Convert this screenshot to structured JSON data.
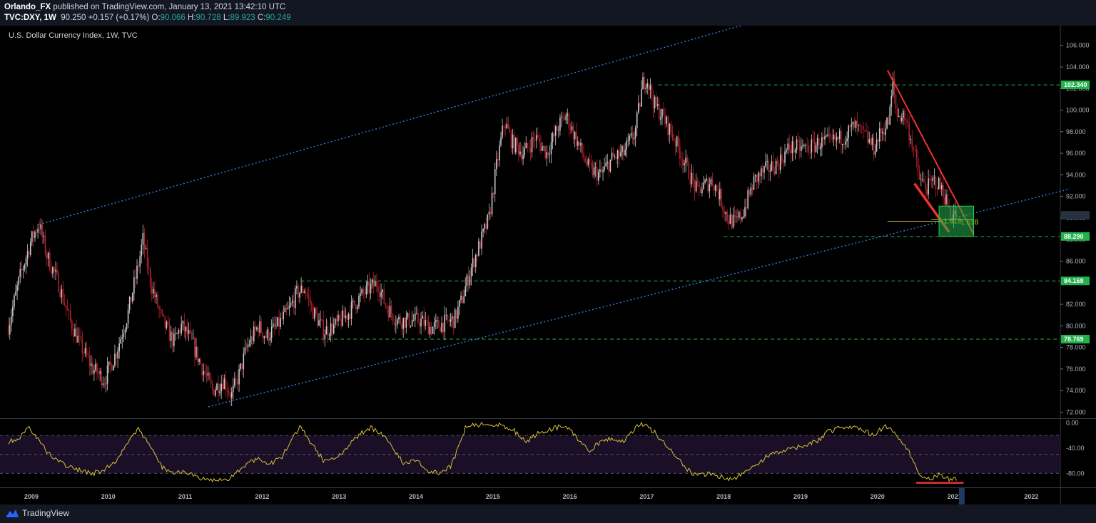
{
  "header": {
    "publisher": "Orlando_FX",
    "published_text": "published on TradingView.com, January 13, 2021 13:42:10 UTC",
    "symbol": "TVC:DXY, 1W",
    "last": "90.250",
    "change": "+0.157 (+0.17%)",
    "o_label": "O:",
    "o": "90.066",
    "h_label": "H:",
    "h": "90.728",
    "l_label": "L:",
    "l": "89.923",
    "c_label": "C:",
    "c": "90.249"
  },
  "footer": {
    "brand": "TradingView"
  },
  "chart_data": [
    {
      "type": "candlestick",
      "title": "U.S. Dollar Currency Index, 1W, TVC",
      "ylim": [
        71.5,
        107.5
      ],
      "y_ticks": [
        "106.000",
        "104.000",
        "102.000",
        "100.000",
        "98.000",
        "96.000",
        "94.000",
        "92.000",
        "90.000",
        "88.000",
        "86.000",
        "84.000",
        "82.000",
        "80.000",
        "78.000",
        "76.000",
        "74.000",
        "72.000"
      ],
      "x_ticks": [
        "2009",
        "2010",
        "2011",
        "2012",
        "2013",
        "2014",
        "2015",
        "2016",
        "2017",
        "2018",
        "2019",
        "2020",
        "2021",
        "2022"
      ],
      "price_tags": [
        {
          "value": 102.34,
          "label": "102.340",
          "color": "#22b14c"
        },
        {
          "value": 88.29,
          "label": "88.290",
          "color": "#22b14c"
        },
        {
          "value": 84.168,
          "label": "84.168",
          "color": "#22b14c"
        },
        {
          "value": 78.769,
          "label": "78.769",
          "color": "#22b14c"
        }
      ],
      "fib_labels": [
        "1.618",
        "1.618"
      ],
      "close_path": [
        [
          "2008.70",
          80.0
        ],
        [
          "2008.85",
          84.5
        ],
        [
          "2009.00",
          88.0
        ],
        [
          "2009.10",
          89.5
        ],
        [
          "2009.20",
          86.5
        ],
        [
          "2009.35",
          84.0
        ],
        [
          "2009.50",
          80.5
        ],
        [
          "2009.65",
          78.0
        ],
        [
          "2009.80",
          76.0
        ],
        [
          "2009.95",
          75.0
        ],
        [
          "2010.10",
          77.5
        ],
        [
          "2010.25",
          81.0
        ],
        [
          "2010.40",
          86.0
        ],
        [
          "2010.45",
          88.0
        ],
        [
          "2010.55",
          84.0
        ],
        [
          "2010.70",
          80.5
        ],
        [
          "2010.85",
          78.5
        ],
        [
          "2010.95",
          80.0
        ],
        [
          "2011.05",
          79.0
        ],
        [
          "2011.20",
          76.5
        ],
        [
          "2011.35",
          74.0
        ],
        [
          "2011.50",
          75.0
        ],
        [
          "2011.60",
          73.5
        ],
        [
          "2011.70",
          75.5
        ],
        [
          "2011.80",
          78.0
        ],
        [
          "2011.95",
          80.0
        ],
        [
          "2012.05",
          79.0
        ],
        [
          "2012.20",
          80.0
        ],
        [
          "2012.35",
          81.5
        ],
        [
          "2012.45",
          83.0
        ],
        [
          "2012.55",
          83.5
        ],
        [
          "2012.65",
          81.5
        ],
        [
          "2012.80",
          79.5
        ],
        [
          "2012.95",
          80.0
        ],
        [
          "2013.10",
          81.0
        ],
        [
          "2013.25",
          82.5
        ],
        [
          "2013.40",
          83.5
        ],
        [
          "2013.50",
          84.0
        ],
        [
          "2013.60",
          82.0
        ],
        [
          "2013.75",
          80.5
        ],
        [
          "2013.90",
          80.5
        ],
        [
          "2014.05",
          80.5
        ],
        [
          "2014.20",
          79.8
        ],
        [
          "2014.35",
          80.2
        ],
        [
          "2014.50",
          80.6
        ],
        [
          "2014.60",
          82.5
        ],
        [
          "2014.70",
          85.0
        ],
        [
          "2014.85",
          88.0
        ],
        [
          "2014.95",
          90.0
        ],
        [
          "2015.05",
          95.0
        ],
        [
          "2015.15",
          99.0
        ],
        [
          "2015.25",
          97.0
        ],
        [
          "2015.40",
          96.0
        ],
        [
          "2015.55",
          97.5
        ],
        [
          "2015.70",
          96.0
        ],
        [
          "2015.85",
          98.5
        ],
        [
          "2015.95",
          99.5
        ],
        [
          "2016.10",
          97.0
        ],
        [
          "2016.25",
          94.5
        ],
        [
          "2016.40",
          94.0
        ],
        [
          "2016.55",
          95.5
        ],
        [
          "2016.70",
          96.0
        ],
        [
          "2016.85",
          98.0
        ],
        [
          "2016.95",
          102.5
        ],
        [
          "2017.00",
          103.0
        ],
        [
          "2017.10",
          100.5
        ],
        [
          "2017.20",
          99.5
        ],
        [
          "2017.35",
          97.5
        ],
        [
          "2017.50",
          95.0
        ],
        [
          "2017.65",
          92.5
        ],
        [
          "2017.75",
          93.0
        ],
        [
          "2017.85",
          93.5
        ],
        [
          "2017.95",
          92.0
        ],
        [
          "2018.05",
          90.0
        ],
        [
          "2018.15",
          89.5
        ],
        [
          "2018.25",
          90.5
        ],
        [
          "2018.40",
          93.5
        ],
        [
          "2018.55",
          94.5
        ],
        [
          "2018.70",
          95.0
        ],
        [
          "2018.85",
          96.5
        ],
        [
          "2018.95",
          96.5
        ],
        [
          "2019.10",
          96.5
        ],
        [
          "2019.25",
          97.0
        ],
        [
          "2019.40",
          97.0
        ],
        [
          "2019.55",
          97.5
        ],
        [
          "2019.70",
          98.5
        ],
        [
          "2019.85",
          97.5
        ],
        [
          "2019.95",
          96.5
        ],
        [
          "2020.05",
          98.0
        ],
        [
          "2020.15",
          99.0
        ],
        [
          "2020.20",
          102.5
        ],
        [
          "2020.25",
          99.5
        ],
        [
          "2020.35",
          99.5
        ],
        [
          "2020.45",
          97.0
        ],
        [
          "2020.55",
          93.5
        ],
        [
          "2020.65",
          92.8
        ],
        [
          "2020.75",
          93.5
        ],
        [
          "2020.85",
          92.5
        ],
        [
          "2020.95",
          90.5
        ],
        [
          "2021.03",
          90.2
        ]
      ]
    },
    {
      "type": "line",
      "title": "",
      "ylim": [
        -100,
        5
      ],
      "y_ticks": [
        "0.00",
        "-40.00",
        "-80.00"
      ],
      "band": [
        -20,
        -80
      ],
      "series_path": [
        [
          "2008.70",
          -30
        ],
        [
          "2008.85",
          -25
        ],
        [
          "2008.95",
          -5
        ],
        [
          "2009.05",
          -20
        ],
        [
          "2009.20",
          -45
        ],
        [
          "2009.40",
          -65
        ],
        [
          "2009.60",
          -75
        ],
        [
          "2009.80",
          -80
        ],
        [
          "2009.95",
          -75
        ],
        [
          "2010.10",
          -60
        ],
        [
          "2010.25",
          -30
        ],
        [
          "2010.40",
          -10
        ],
        [
          "2010.55",
          -40
        ],
        [
          "2010.70",
          -70
        ],
        [
          "2010.85",
          -80
        ],
        [
          "2011.00",
          -75
        ],
        [
          "2011.15",
          -88
        ],
        [
          "2011.35",
          -92
        ],
        [
          "2011.55",
          -90
        ],
        [
          "2011.75",
          -70
        ],
        [
          "2011.95",
          -55
        ],
        [
          "2012.10",
          -65
        ],
        [
          "2012.25",
          -55
        ],
        [
          "2012.40",
          -25
        ],
        [
          "2012.50",
          -5
        ],
        [
          "2012.65",
          -35
        ],
        [
          "2012.80",
          -60
        ],
        [
          "2012.95",
          -55
        ],
        [
          "2013.10",
          -40
        ],
        [
          "2013.25",
          -20
        ],
        [
          "2013.40",
          -8
        ],
        [
          "2013.55",
          -15
        ],
        [
          "2013.70",
          -40
        ],
        [
          "2013.85",
          -65
        ],
        [
          "2014.00",
          -60
        ],
        [
          "2014.15",
          -75
        ],
        [
          "2014.30",
          -80
        ],
        [
          "2014.45",
          -70
        ],
        [
          "2014.55",
          -40
        ],
        [
          "2014.65",
          -5
        ],
        [
          "2014.85",
          -2
        ],
        [
          "2015.05",
          -3
        ],
        [
          "2015.25",
          -10
        ],
        [
          "2015.45",
          -30
        ],
        [
          "2015.60",
          -15
        ],
        [
          "2015.80",
          -8
        ],
        [
          "2015.95",
          -5
        ],
        [
          "2016.10",
          -25
        ],
        [
          "2016.25",
          -45
        ],
        [
          "2016.40",
          -30
        ],
        [
          "2016.55",
          -25
        ],
        [
          "2016.70",
          -30
        ],
        [
          "2016.85",
          -8
        ],
        [
          "2016.95",
          -2
        ],
        [
          "2017.10",
          -15
        ],
        [
          "2017.30",
          -40
        ],
        [
          "2017.50",
          -70
        ],
        [
          "2017.65",
          -85
        ],
        [
          "2017.80",
          -80
        ],
        [
          "2017.95",
          -85
        ],
        [
          "2018.05",
          -90
        ],
        [
          "2018.15",
          -88
        ],
        [
          "2018.30",
          -75
        ],
        [
          "2018.45",
          -65
        ],
        [
          "2018.60",
          -50
        ],
        [
          "2018.75",
          -45
        ],
        [
          "2018.90",
          -40
        ],
        [
          "2019.05",
          -35
        ],
        [
          "2019.20",
          -30
        ],
        [
          "2019.35",
          -15
        ],
        [
          "2019.50",
          -8
        ],
        [
          "2019.65",
          -5
        ],
        [
          "2019.80",
          -10
        ],
        [
          "2019.95",
          -20
        ],
        [
          "2020.10",
          -5
        ],
        [
          "2020.20",
          -15
        ],
        [
          "2020.30",
          -25
        ],
        [
          "2020.45",
          -55
        ],
        [
          "2020.55",
          -85
        ],
        [
          "2020.70",
          -88
        ],
        [
          "2020.80",
          -82
        ],
        [
          "2020.90",
          -88
        ],
        [
          "2021.00",
          -90
        ],
        [
          "2021.03",
          -88
        ]
      ]
    }
  ]
}
